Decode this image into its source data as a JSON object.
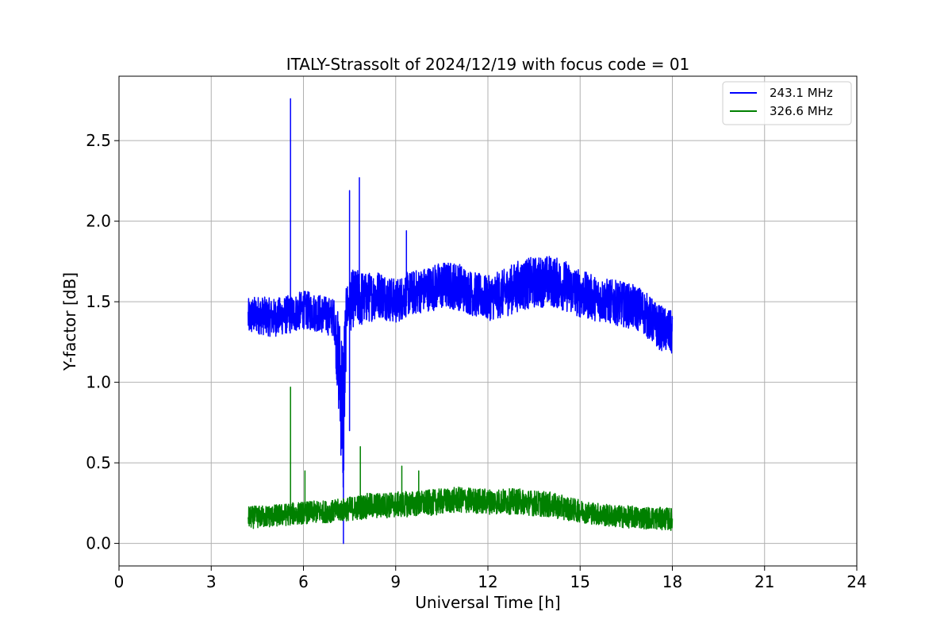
{
  "chart_data": {
    "type": "line",
    "title": "ITALY-Strassolt of 2024/12/19 with focus code = 01",
    "xlabel": "Universal Time [h]",
    "ylabel": "Y-factor [dB]",
    "xlim": [
      0,
      24
    ],
    "ylim": [
      -0.14,
      2.9
    ],
    "xticks": [
      0,
      3,
      6,
      9,
      12,
      15,
      18,
      21,
      24
    ],
    "xtick_labels": [
      "0",
      "3",
      "6",
      "9",
      "12",
      "15",
      "18",
      "21",
      "24"
    ],
    "yticks": [
      0.0,
      0.5,
      1.0,
      1.5,
      2.0,
      2.5
    ],
    "ytick_labels": [
      "0.0",
      "0.5",
      "1.0",
      "1.5",
      "2.0",
      "2.5"
    ],
    "grid": true,
    "legend_position": "top-right",
    "series": [
      {
        "name": "243.1 MHz",
        "color": "#0000ff",
        "x": [
          4.2,
          4.5,
          5.0,
          5.5,
          5.55,
          5.6,
          6.0,
          6.5,
          7.0,
          7.2,
          7.25,
          7.3,
          7.35,
          7.4,
          7.5,
          7.55,
          7.6,
          7.8,
          7.85,
          7.9,
          8.0,
          8.5,
          9.0,
          9.4,
          9.5,
          10.0,
          10.5,
          11.0,
          11.5,
          12.0,
          12.5,
          13.0,
          13.5,
          14.0,
          14.5,
          15.0,
          15.5,
          16.0,
          16.5,
          17.0,
          17.5,
          18.0
        ],
        "y_center": [
          1.4,
          1.42,
          1.4,
          1.42,
          1.42,
          1.42,
          1.45,
          1.43,
          1.4,
          1.0,
          0.9,
          0.8,
          1.1,
          1.45,
          1.5,
          1.5,
          1.52,
          1.52,
          1.52,
          1.52,
          1.52,
          1.55,
          1.5,
          1.55,
          1.55,
          1.58,
          1.6,
          1.6,
          1.55,
          1.52,
          1.55,
          1.6,
          1.62,
          1.63,
          1.6,
          1.55,
          1.52,
          1.5,
          1.48,
          1.45,
          1.35,
          1.3
        ],
        "y_noise": [
          0.12,
          0.12,
          0.12,
          0.12,
          0.12,
          0.12,
          0.12,
          0.12,
          0.12,
          0.4,
          0.5,
          0.6,
          0.4,
          0.15,
          0.18,
          0.18,
          0.18,
          0.18,
          0.18,
          0.18,
          0.16,
          0.15,
          0.14,
          0.14,
          0.14,
          0.14,
          0.15,
          0.15,
          0.14,
          0.14,
          0.15,
          0.16,
          0.16,
          0.16,
          0.16,
          0.15,
          0.14,
          0.14,
          0.14,
          0.14,
          0.14,
          0.14
        ],
        "spikes": [
          {
            "x": 5.58,
            "y": 2.76
          },
          {
            "x": 7.5,
            "y": 2.19
          },
          {
            "x": 7.82,
            "y": 2.27
          },
          {
            "x": 9.35,
            "y": 1.94
          },
          {
            "x": 7.3,
            "y": 0.0
          },
          {
            "x": 7.5,
            "y": 0.7
          }
        ]
      },
      {
        "name": "326.6 MHz",
        "color": "#008000",
        "x": [
          4.2,
          5.0,
          6.0,
          7.0,
          8.0,
          9.0,
          10.0,
          11.0,
          12.0,
          13.0,
          14.0,
          15.0,
          16.0,
          17.0,
          18.0
        ],
        "y_center": [
          0.16,
          0.17,
          0.19,
          0.2,
          0.23,
          0.24,
          0.25,
          0.27,
          0.26,
          0.26,
          0.24,
          0.2,
          0.17,
          0.16,
          0.15
        ],
        "y_noise": [
          0.07,
          0.07,
          0.07,
          0.07,
          0.08,
          0.08,
          0.08,
          0.08,
          0.08,
          0.08,
          0.08,
          0.07,
          0.07,
          0.07,
          0.07
        ],
        "spikes": [
          {
            "x": 5.58,
            "y": 0.97
          },
          {
            "x": 6.05,
            "y": 0.45
          },
          {
            "x": 7.85,
            "y": 0.6
          },
          {
            "x": 9.2,
            "y": 0.48
          },
          {
            "x": 9.75,
            "y": 0.45
          }
        ]
      }
    ]
  }
}
